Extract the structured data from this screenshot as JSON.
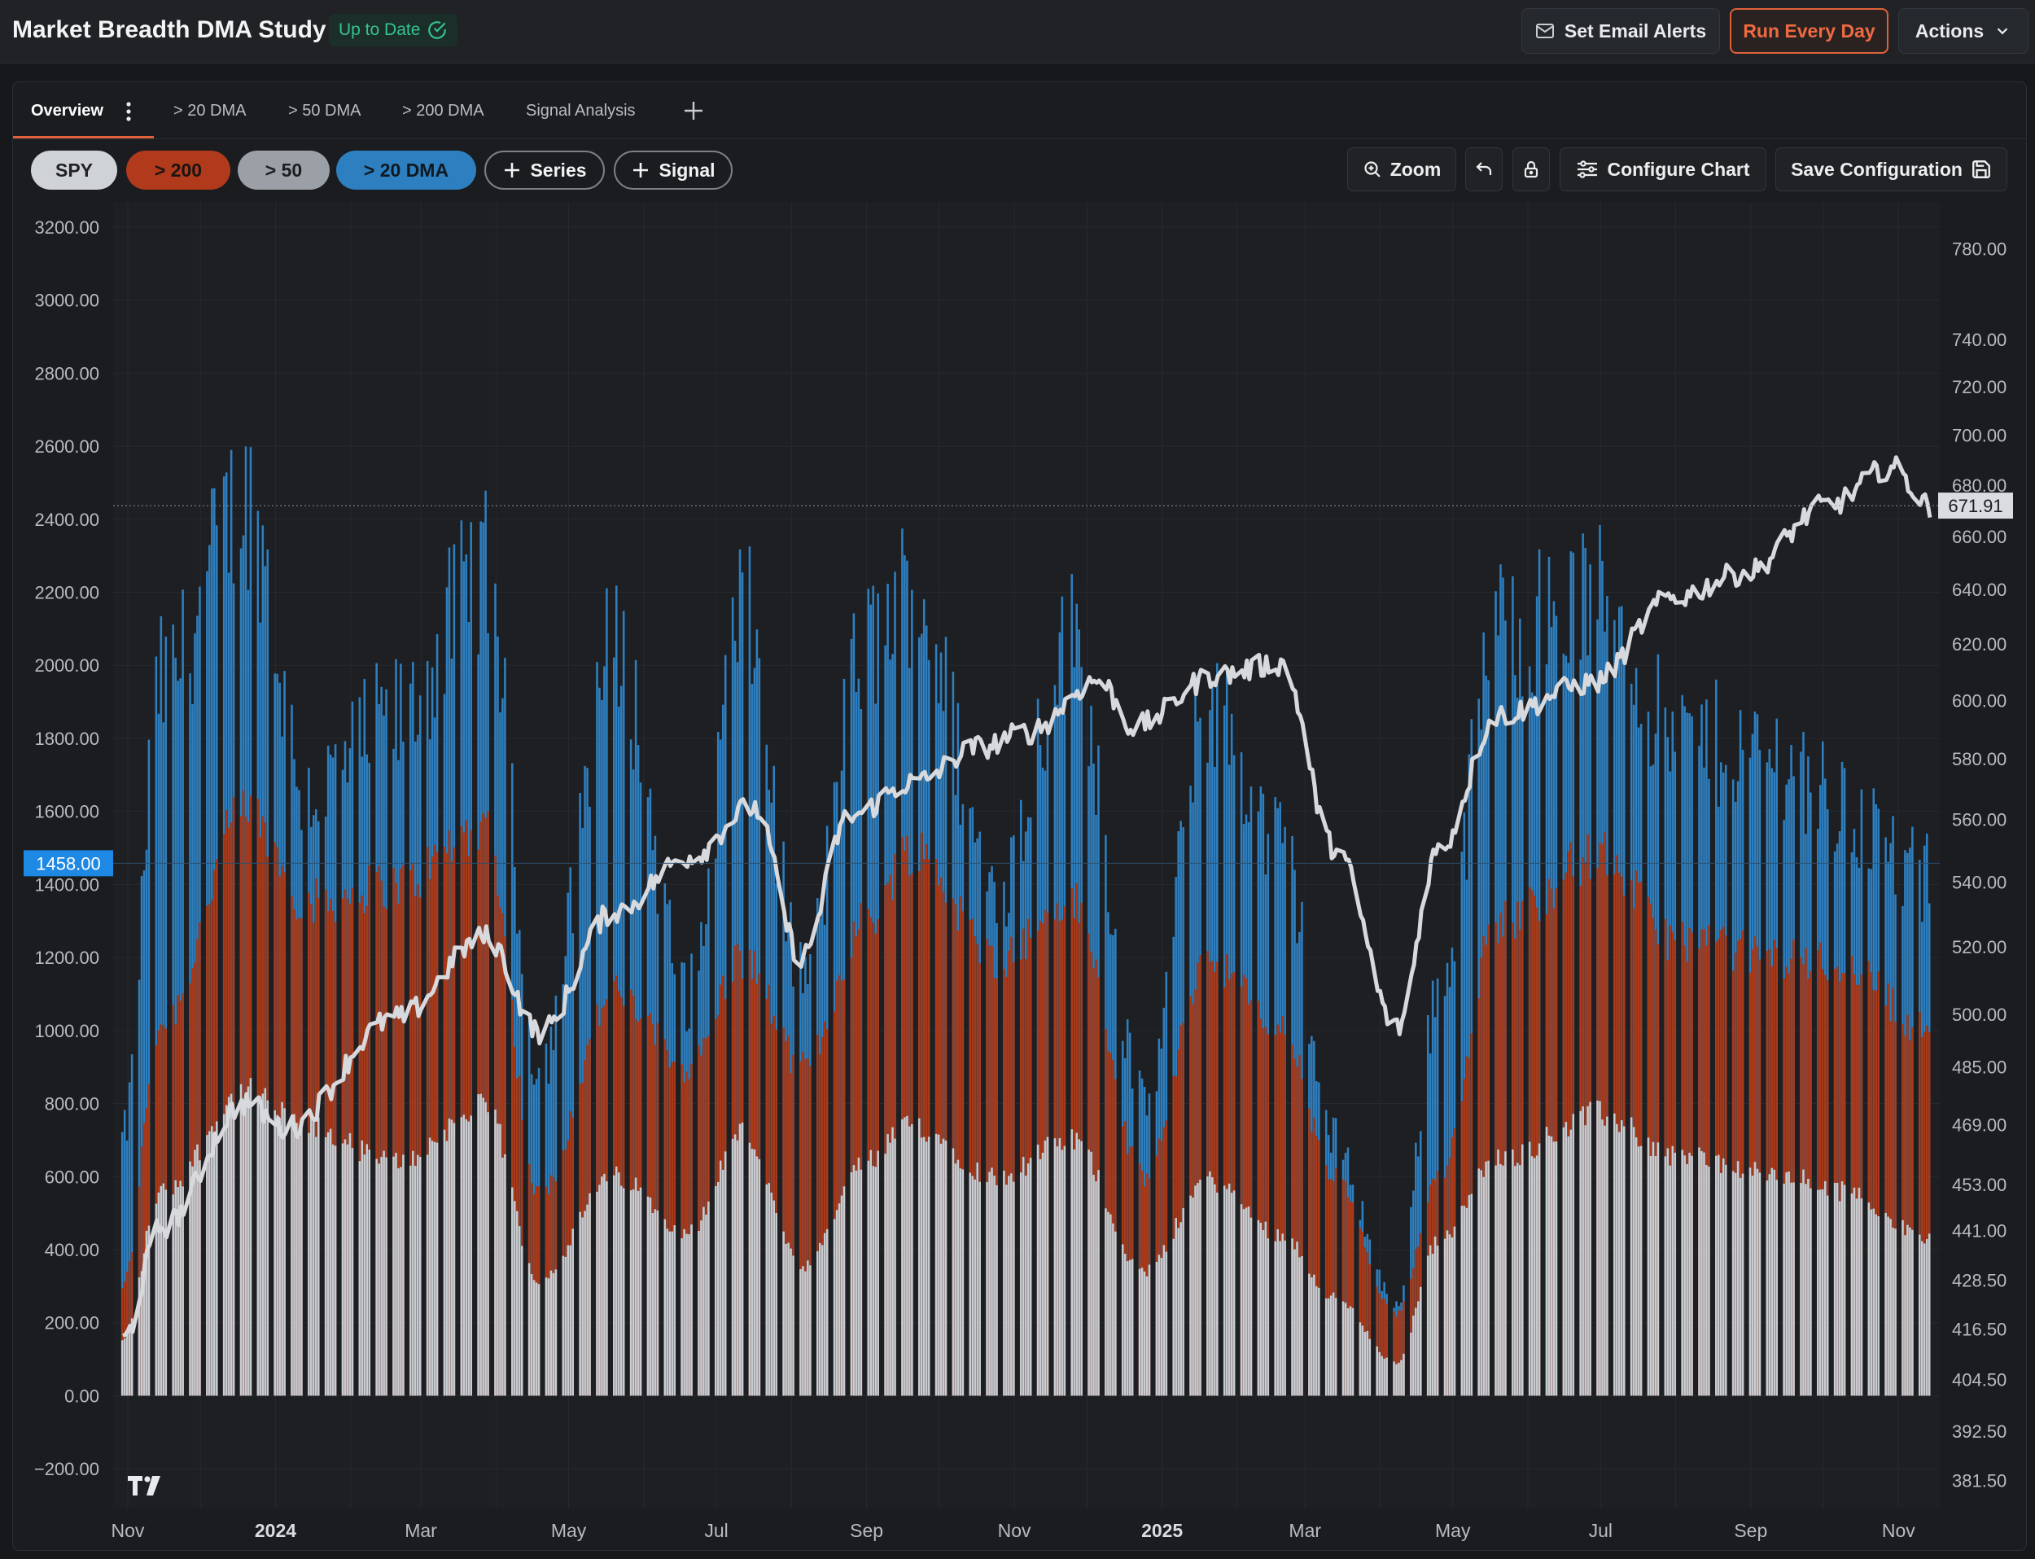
{
  "header": {
    "title": "Market Breadth DMA Study",
    "status": "Up to Date",
    "alerts_label": "Set Email Alerts",
    "run_label": "Run Every Day",
    "actions_label": "Actions"
  },
  "tabs": [
    {
      "label": "Overview",
      "active": true
    },
    {
      "label": "> 20 DMA"
    },
    {
      "label": "> 50 DMA"
    },
    {
      "label": "> 200 DMA"
    },
    {
      "label": "Signal Analysis"
    }
  ],
  "legend_pills": [
    {
      "label": "SPY",
      "color": "#cfd2d6"
    },
    {
      "label": "> 200",
      "color": "#b03a1b"
    },
    {
      "label": "> 50",
      "color": "#9aa0a6"
    },
    {
      "label": "> 20 DMA",
      "color": "#2e7fbf"
    }
  ],
  "add_buttons": {
    "series": "Series",
    "signal": "Signal"
  },
  "toolbar": {
    "zoom": "Zoom",
    "configure": "Configure Chart",
    "save": "Save Configuration"
  },
  "colors": {
    "accent": "#e0603a",
    "status_green": "#35c38f",
    "above_20": "#2e7fbf",
    "above_200": "#a83a1a",
    "above_50": "#c9ccd0",
    "spy_line": "#d7d9dc",
    "crosshair_label": "#1e88e5"
  },
  "chart_data": {
    "type": "bar",
    "stacked": true,
    "left_axis": {
      "ticks": [
        "3200.00",
        "3000.00",
        "2800.00",
        "2600.00",
        "2400.00",
        "2200.00",
        "2000.00",
        "1800.00",
        "1600.00",
        "1400.00",
        "1200.00",
        "1000.00",
        "800.00",
        "600.00",
        "400.00",
        "200.00",
        "0.00",
        "−200.00"
      ],
      "range": [
        -300,
        3260
      ]
    },
    "right_axis": {
      "ticks": [
        "780.00",
        "740.00",
        "720.00",
        "700.00",
        "680.00",
        "660.00",
        "640.00",
        "620.00",
        "600.00",
        "580.00",
        "560.00",
        "540.00",
        "520.00",
        "500.00",
        "485.00",
        "469.00",
        "453.00",
        "441.00",
        "428.50",
        "416.50",
        "404.50",
        "392.50",
        "381.50"
      ],
      "scale": "log",
      "range": [
        376,
        800
      ]
    },
    "x_labels": [
      "Nov",
      "2024",
      "Mar",
      "May",
      "Jul",
      "Sep",
      "Nov",
      "2025",
      "Mar",
      "May",
      "Jul",
      "Sep",
      "Nov"
    ],
    "x_range": [
      "2023-10-30",
      "2025-11-14"
    ],
    "crosshair_left_value": "1458.00",
    "last_price_label": "671.91",
    "series": [
      {
        "name": "> 50",
        "keypoints": [
          [
            "2023-10-30",
            150
          ],
          [
            "2023-11-15",
            560
          ],
          [
            "2023-12-20",
            830
          ],
          [
            "2024-01-15",
            730
          ],
          [
            "2024-02-20",
            640
          ],
          [
            "2024-03-28",
            790
          ],
          [
            "2024-04-19",
            320
          ],
          [
            "2024-05-20",
            600
          ],
          [
            "2024-06-20",
            450
          ],
          [
            "2024-07-12",
            720
          ],
          [
            "2024-08-06",
            350
          ],
          [
            "2024-09-01",
            640
          ],
          [
            "2024-09-20",
            740
          ],
          [
            "2024-10-25",
            600
          ],
          [
            "2024-11-25",
            700
          ],
          [
            "2024-12-25",
            340
          ],
          [
            "2025-01-20",
            590
          ],
          [
            "2025-02-20",
            440
          ],
          [
            "2025-03-13",
            270
          ],
          [
            "2025-04-08",
            90
          ],
          [
            "2025-04-25",
            420
          ],
          [
            "2025-05-20",
            650
          ],
          [
            "2025-07-01",
            770
          ],
          [
            "2025-08-01",
            660
          ],
          [
            "2025-09-15",
            600
          ],
          [
            "2025-10-10",
            560
          ],
          [
            "2025-11-14",
            430
          ]
        ]
      },
      {
        "name": "> 200",
        "keypoints": [
          [
            "2023-10-30",
            300
          ],
          [
            "2023-11-15",
            1020
          ],
          [
            "2023-12-20",
            1600
          ],
          [
            "2024-01-15",
            1350
          ],
          [
            "2024-02-20",
            1400
          ],
          [
            "2024-03-28",
            1560
          ],
          [
            "2024-04-19",
            550
          ],
          [
            "2024-05-20",
            1100
          ],
          [
            "2024-06-20",
            900
          ],
          [
            "2024-07-12",
            1200
          ],
          [
            "2024-08-06",
            900
          ],
          [
            "2024-09-01",
            1300
          ],
          [
            "2024-09-20",
            1500
          ],
          [
            "2024-10-25",
            1200
          ],
          [
            "2024-11-25",
            1350
          ],
          [
            "2024-12-25",
            600
          ],
          [
            "2025-01-20",
            1200
          ],
          [
            "2025-02-20",
            1000
          ],
          [
            "2025-03-13",
            600
          ],
          [
            "2025-04-08",
            220
          ],
          [
            "2025-04-25",
            600
          ],
          [
            "2025-05-20",
            1300
          ],
          [
            "2025-07-01",
            1480
          ],
          [
            "2025-08-01",
            1250
          ],
          [
            "2025-09-15",
            1200
          ],
          [
            "2025-10-10",
            1180
          ],
          [
            "2025-11-14",
            1000
          ]
        ]
      },
      {
        "name": "> 20 DMA",
        "keypoints": [
          [
            "2023-10-30",
            700
          ],
          [
            "2023-11-15",
            1950
          ],
          [
            "2023-12-20",
            2450
          ],
          [
            "2024-01-15",
            1650
          ],
          [
            "2024-02-20",
            1850
          ],
          [
            "2024-03-28",
            2260
          ],
          [
            "2024-04-19",
            900
          ],
          [
            "2024-05-20",
            2050
          ],
          [
            "2024-06-20",
            1100
          ],
          [
            "2024-07-12",
            2150
          ],
          [
            "2024-08-06",
            1150
          ],
          [
            "2024-09-01",
            2050
          ],
          [
            "2024-09-20",
            2210
          ],
          [
            "2024-10-25",
            1400
          ],
          [
            "2024-11-25",
            2070
          ],
          [
            "2024-12-25",
            800
          ],
          [
            "2025-01-20",
            1900
          ],
          [
            "2025-02-20",
            1500
          ],
          [
            "2025-03-13",
            700
          ],
          [
            "2025-04-08",
            250
          ],
          [
            "2025-04-25",
            1100
          ],
          [
            "2025-05-20",
            2100
          ],
          [
            "2025-07-01",
            2180
          ],
          [
            "2025-08-01",
            1800
          ],
          [
            "2025-09-15",
            1750
          ],
          [
            "2025-10-10",
            1600
          ],
          [
            "2025-11-14",
            1400
          ]
        ]
      },
      {
        "name": "SPY",
        "keypoints": [
          [
            "2023-10-30",
            414
          ],
          [
            "2023-11-15",
            442
          ],
          [
            "2023-12-20",
            475
          ],
          [
            "2024-01-05",
            468
          ],
          [
            "2024-02-20",
            499
          ],
          [
            "2024-03-28",
            523
          ],
          [
            "2024-04-19",
            495
          ],
          [
            "2024-05-20",
            531
          ],
          [
            "2024-06-20",
            548
          ],
          [
            "2024-07-16",
            564
          ],
          [
            "2024-08-05",
            517
          ],
          [
            "2024-08-25",
            561
          ],
          [
            "2024-09-20",
            572
          ],
          [
            "2024-10-18",
            584
          ],
          [
            "2024-11-06",
            589
          ],
          [
            "2024-12-06",
            607
          ],
          [
            "2024-12-20",
            591
          ],
          [
            "2025-01-24",
            609
          ],
          [
            "2025-02-19",
            613
          ],
          [
            "2025-03-13",
            551
          ],
          [
            "2025-04-08",
            496
          ],
          [
            "2025-04-25",
            550
          ],
          [
            "2025-05-20",
            595
          ],
          [
            "2025-06-27",
            606
          ],
          [
            "2025-07-31",
            637
          ],
          [
            "2025-08-29",
            646
          ],
          [
            "2025-10-03",
            672
          ],
          [
            "2025-10-29",
            687
          ],
          [
            "2025-11-14",
            671.91
          ]
        ]
      }
    ]
  }
}
